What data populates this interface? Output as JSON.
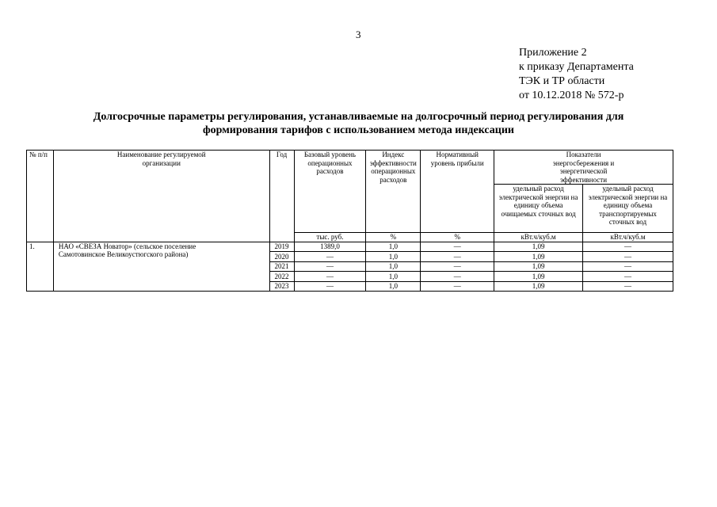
{
  "page_number": "3",
  "appendix": [
    "Приложение 2",
    "к приказу Департамента",
    "ТЭК и ТР области",
    "от 10.12.2018 № 572-р"
  ],
  "title": [
    "Долгосрочные параметры регулирования, устанавливаемые на долгосрочный период регулирования для",
    "формирования тарифов с использованием метода индексации"
  ],
  "table": {
    "headers": {
      "num": "№ п/п",
      "org": "Наименование регулируемой организации",
      "year": "Год",
      "base": "Базовый уровень операционных расходов",
      "index": "Индекс эффективности операционных расходов",
      "profit": "Нормативный уровень прибыли",
      "energy_group": "Показатели энергосбережения и энергетической эффективности",
      "energy1": "удельный расход электрической энергии на единицу объема очищаемых сточных вод",
      "energy2": "удельный расход электрической энергии на единицу объема транспортируемых сточных вод"
    },
    "units": {
      "base": "тыс. руб.",
      "index": "%",
      "profit": "%",
      "energy1": "кВт.ч/куб.м",
      "energy2": "кВт.ч/куб.м"
    },
    "entry": {
      "num": "1.",
      "org": "НАО «СВЕЗА Новатор» (сельское поселение Самотовинское Великоустюгского района)"
    },
    "rows": [
      {
        "year": "2019",
        "base": "1389,0",
        "index": "1,0",
        "profit": "—",
        "energy1": "1,09",
        "energy2": "—"
      },
      {
        "year": "2020",
        "base": "—",
        "index": "1,0",
        "profit": "—",
        "energy1": "1,09",
        "energy2": "—"
      },
      {
        "year": "2021",
        "base": "—",
        "index": "1,0",
        "profit": "—",
        "energy1": "1,09",
        "energy2": "—"
      },
      {
        "year": "2022",
        "base": "—",
        "index": "1,0",
        "profit": "—",
        "energy1": "1,09",
        "energy2": "—"
      },
      {
        "year": "2023",
        "base": "—",
        "index": "1,0",
        "profit": "—",
        "energy1": "1,09",
        "energy2": "—"
      }
    ]
  }
}
